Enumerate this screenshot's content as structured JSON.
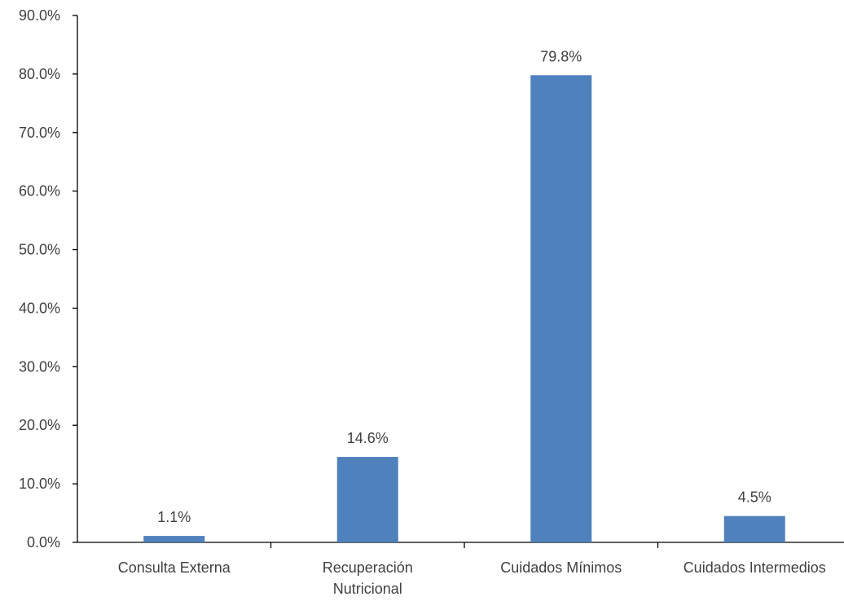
{
  "chart_data": {
    "type": "bar",
    "title": "",
    "xlabel": "",
    "ylabel": "",
    "categories": [
      [
        "Consulta Externa"
      ],
      [
        "Recuperación",
        "Nutricional"
      ],
      [
        "Cuidados Mínimos"
      ],
      [
        "Cuidados Intermedios"
      ]
    ],
    "values": [
      1.1,
      14.6,
      79.8,
      4.5
    ],
    "data_labels": [
      "1.1%",
      "14.6%",
      "79.8%",
      "4.5%"
    ],
    "ylim": [
      0,
      90
    ],
    "yticks": [
      0,
      10,
      20,
      30,
      40,
      50,
      60,
      70,
      80,
      90
    ],
    "ytick_labels": [
      "0.0%",
      "10.0%",
      "20.0%",
      "30.0%",
      "40.0%",
      "50.0%",
      "60.0%",
      "70.0%",
      "80.0%",
      "90.0%"
    ],
    "grid": false,
    "legend": "none",
    "bar_color": "#4f81bd"
  }
}
